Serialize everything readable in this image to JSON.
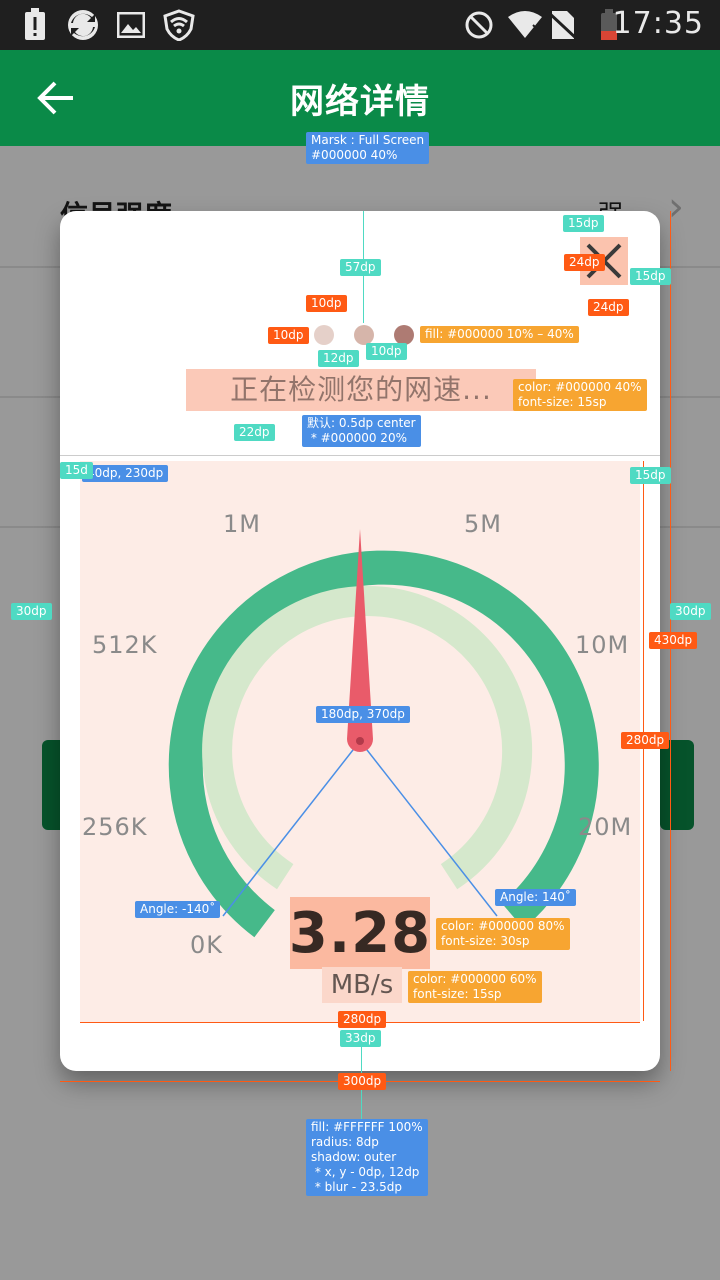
{
  "status_bar": {
    "time": "17:35",
    "icons": [
      "battery-alert-icon",
      "sync-icon",
      "image-icon",
      "wifi-shield-icon",
      "do-not-disturb-icon",
      "wifi-icon",
      "no-sim-icon",
      "battery-low-icon"
    ]
  },
  "app_bar": {
    "title": "网络详情",
    "back_icon": "arrow-left-icon"
  },
  "background_rows": [
    {
      "title": "信号强度",
      "value": "强"
    }
  ],
  "dialog": {
    "detecting_text": "正在检测您的网速...",
    "speed_value": "3.28",
    "speed_unit": "MB/s",
    "gauge_labels": [
      "0K",
      "256K",
      "512K",
      "1M",
      "5M",
      "10M",
      "20M"
    ],
    "gauge_progress": 0.5,
    "dots": 3
  },
  "annotations": {
    "mask": "Marsk : Full Screen\n#000000 40%",
    "dialog_fill": "fill: #FFFFFF 100%\nradius: 8dp\nshadow: outer\n * x, y - 0dp, 12dp\n * blur - 23.5dp",
    "dots_fill": "fill: #000000 10% – 40%",
    "detecting_style": "color: #000000 40%\nfont-size: 15sp",
    "divider_style": "默认: 0.5dp center\n * #000000 20%",
    "speed_style": "color: #000000 80%\nfont-size: 30sp",
    "unit_style": "color: #000000 60%\nfont-size: 15sp",
    "pivot": "180dp, 370dp",
    "gauge_origin": "40dp, 230dp",
    "angle_left": "Angle: -140˚",
    "angle_right": "Angle: 140˚",
    "dims": {
      "d15a": "15dp",
      "d24a": "24dp",
      "d15b": "15dp",
      "d24b": "24dp",
      "d57": "57dp",
      "d10a": "10dp",
      "d10b": "10dp",
      "d12": "12dp",
      "d10c": "10dp",
      "d22": "22dp",
      "d15c": "15d",
      "d15d": "15dp",
      "d30a": "30dp",
      "d30b": "30dp",
      "d430": "430dp",
      "d280a": "280dp",
      "d280b": "280dp",
      "d33": "33dp",
      "d300": "300dp"
    }
  }
}
